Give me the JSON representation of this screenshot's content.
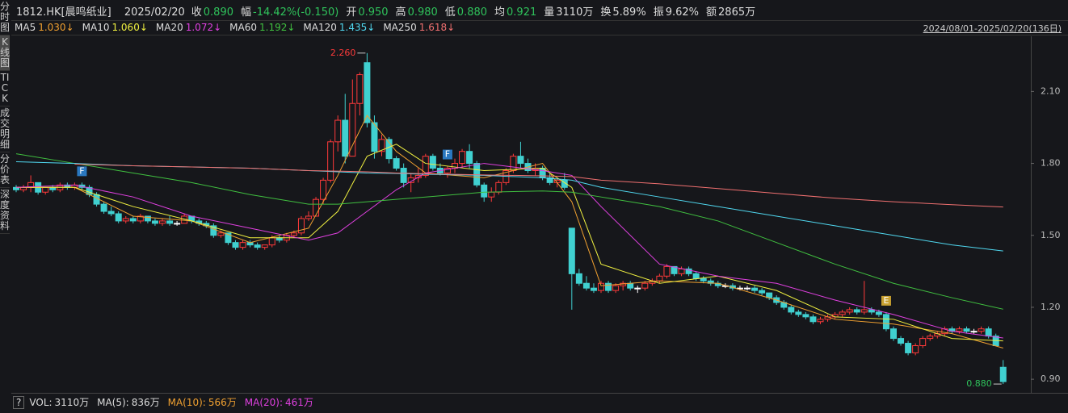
{
  "sidebar_tabs": [
    "分时图",
    "K线图",
    "TICK",
    "成交明细",
    "分价表",
    "深度资料"
  ],
  "header": {
    "symbol": "1812.HK[晨鸣纸业]",
    "date": "2025/02/20",
    "fields": [
      {
        "label": "收",
        "value": "0.890",
        "color": "#2fc25b"
      },
      {
        "label": "幅",
        "value": "-14.42%(-0.150)",
        "color": "#2fc25b"
      },
      {
        "label": "开",
        "value": "0.950",
        "color": "#2fc25b"
      },
      {
        "label": "高",
        "value": "0.980",
        "color": "#2fc25b"
      },
      {
        "label": "低",
        "value": "0.880",
        "color": "#2fc25b"
      },
      {
        "label": "均",
        "value": "0.921",
        "color": "#2fc25b"
      },
      {
        "label": "量",
        "value": "3110万",
        "color": "#dddddd"
      },
      {
        "label": "换",
        "value": "5.89%",
        "color": "#dddddd"
      },
      {
        "label": "振",
        "value": "9.62%",
        "color": "#dddddd"
      },
      {
        "label": "额",
        "value": "2865万",
        "color": "#dddddd"
      }
    ]
  },
  "volume_bar": [
    {
      "label": "VOL:",
      "value": "3110万",
      "color": "#dddddd"
    },
    {
      "label": "MA(5):",
      "value": "836万",
      "color": "#dddddd"
    },
    {
      "label": "MA(10):",
      "value": "566万",
      "color": "#f0a030"
    },
    {
      "label": "MA(20):",
      "value": "461万",
      "color": "#e040e0"
    }
  ],
  "chart_data": {
    "type": "candlestick",
    "range_label": "2024/08/01-2025/02/20(136日)",
    "ylim": [
      0.85,
      2.33
    ],
    "yticks": [
      {
        "value": 0.9,
        "label": "0.90"
      },
      {
        "value": 1.2,
        "label": "1.20"
      },
      {
        "value": 1.5,
        "label": "1.50"
      },
      {
        "value": 1.8,
        "label": "1.80"
      },
      {
        "value": 2.1,
        "label": "2.10"
      }
    ],
    "up_color": "#ff3a3a",
    "down_color": "#40d0d0",
    "candles": [
      [
        1.7,
        1.71,
        1.68,
        1.69
      ],
      [
        1.69,
        1.71,
        1.68,
        1.7
      ],
      [
        1.7,
        1.75,
        1.68,
        1.72
      ],
      [
        1.72,
        1.72,
        1.67,
        1.68
      ],
      [
        1.68,
        1.7,
        1.67,
        1.7
      ],
      [
        1.7,
        1.71,
        1.68,
        1.69
      ],
      [
        1.69,
        1.72,
        1.68,
        1.71
      ],
      [
        1.71,
        1.72,
        1.69,
        1.7
      ],
      [
        1.7,
        1.72,
        1.69,
        1.71
      ],
      [
        1.71,
        1.72,
        1.69,
        1.7
      ],
      [
        1.7,
        1.71,
        1.66,
        1.67
      ],
      [
        1.67,
        1.68,
        1.62,
        1.63
      ],
      [
        1.63,
        1.64,
        1.59,
        1.6
      ],
      [
        1.6,
        1.62,
        1.58,
        1.59
      ],
      [
        1.59,
        1.6,
        1.55,
        1.56
      ],
      [
        1.56,
        1.58,
        1.55,
        1.57
      ],
      [
        1.57,
        1.58,
        1.55,
        1.56
      ],
      [
        1.56,
        1.59,
        1.55,
        1.58
      ],
      [
        1.58,
        1.58,
        1.55,
        1.56
      ],
      [
        1.56,
        1.57,
        1.54,
        1.55
      ],
      [
        1.55,
        1.57,
        1.54,
        1.56
      ],
      [
        1.56,
        1.58,
        1.54,
        1.55
      ],
      [
        1.55,
        1.56,
        1.54,
        1.55
      ],
      [
        1.55,
        1.59,
        1.55,
        1.58
      ],
      [
        1.58,
        1.58,
        1.55,
        1.56
      ],
      [
        1.56,
        1.57,
        1.54,
        1.55
      ],
      [
        1.55,
        1.56,
        1.53,
        1.54
      ],
      [
        1.54,
        1.55,
        1.49,
        1.5
      ],
      [
        1.5,
        1.52,
        1.49,
        1.51
      ],
      [
        1.51,
        1.51,
        1.46,
        1.47
      ],
      [
        1.47,
        1.48,
        1.44,
        1.45
      ],
      [
        1.45,
        1.48,
        1.44,
        1.47
      ],
      [
        1.47,
        1.48,
        1.45,
        1.46
      ],
      [
        1.46,
        1.47,
        1.44,
        1.45
      ],
      [
        1.45,
        1.46,
        1.44,
        1.46
      ],
      [
        1.46,
        1.5,
        1.45,
        1.49
      ],
      [
        1.49,
        1.5,
        1.47,
        1.48
      ],
      [
        1.48,
        1.51,
        1.47,
        1.5
      ],
      [
        1.5,
        1.52,
        1.49,
        1.51
      ],
      [
        1.51,
        1.58,
        1.5,
        1.57
      ],
      [
        1.57,
        1.6,
        1.56,
        1.58
      ],
      [
        1.58,
        1.66,
        1.58,
        1.65
      ],
      [
        1.65,
        1.74,
        1.63,
        1.73
      ],
      [
        1.73,
        1.9,
        1.72,
        1.89
      ],
      [
        1.89,
        2.0,
        1.85,
        1.98
      ],
      [
        1.98,
        2.09,
        1.8,
        1.83
      ],
      [
        1.83,
        2.15,
        1.83,
        2.05
      ],
      [
        2.05,
        2.18,
        2.0,
        2.17
      ],
      [
        2.22,
        2.26,
        1.95,
        1.97
      ],
      [
        1.97,
        2.0,
        1.82,
        1.85
      ],
      [
        1.85,
        1.92,
        1.83,
        1.9
      ],
      [
        1.9,
        1.91,
        1.8,
        1.82
      ],
      [
        1.82,
        1.83,
        1.77,
        1.78
      ],
      [
        1.78,
        1.8,
        1.7,
        1.72
      ],
      [
        1.72,
        1.76,
        1.68,
        1.74
      ],
      [
        1.74,
        1.78,
        1.72,
        1.75
      ],
      [
        1.75,
        1.84,
        1.74,
        1.83
      ],
      [
        1.83,
        1.84,
        1.77,
        1.78
      ],
      [
        1.78,
        1.8,
        1.75,
        1.76
      ],
      [
        1.76,
        1.79,
        1.74,
        1.78
      ],
      [
        1.78,
        1.82,
        1.76,
        1.8
      ],
      [
        1.8,
        1.86,
        1.78,
        1.85
      ],
      [
        1.85,
        1.88,
        1.78,
        1.8
      ],
      [
        1.8,
        1.81,
        1.7,
        1.71
      ],
      [
        1.71,
        1.72,
        1.64,
        1.66
      ],
      [
        1.66,
        1.7,
        1.64,
        1.68
      ],
      [
        1.68,
        1.73,
        1.67,
        1.72
      ],
      [
        1.72,
        1.78,
        1.71,
        1.77
      ],
      [
        1.77,
        1.84,
        1.76,
        1.83
      ],
      [
        1.83,
        1.89,
        1.78,
        1.8
      ],
      [
        1.8,
        1.82,
        1.76,
        1.77
      ],
      [
        1.77,
        1.8,
        1.75,
        1.78
      ],
      [
        1.78,
        1.79,
        1.73,
        1.74
      ],
      [
        1.74,
        1.76,
        1.71,
        1.72
      ],
      [
        1.72,
        1.74,
        1.7,
        1.73
      ],
      [
        1.73,
        1.76,
        1.69,
        1.7
      ],
      [
        1.53,
        1.53,
        1.19,
        1.34
      ],
      [
        1.34,
        1.36,
        1.29,
        1.3
      ],
      [
        1.3,
        1.33,
        1.27,
        1.28
      ],
      [
        1.28,
        1.3,
        1.26,
        1.27
      ],
      [
        1.27,
        1.31,
        1.26,
        1.3
      ],
      [
        1.3,
        1.31,
        1.26,
        1.27
      ],
      [
        1.27,
        1.3,
        1.26,
        1.29
      ],
      [
        1.29,
        1.31,
        1.27,
        1.3
      ],
      [
        1.3,
        1.31,
        1.27,
        1.28
      ],
      [
        1.28,
        1.29,
        1.26,
        1.28
      ],
      [
        1.28,
        1.31,
        1.27,
        1.3
      ],
      [
        1.3,
        1.32,
        1.29,
        1.31
      ],
      [
        1.31,
        1.34,
        1.3,
        1.33
      ],
      [
        1.33,
        1.38,
        1.32,
        1.37
      ],
      [
        1.37,
        1.37,
        1.33,
        1.34
      ],
      [
        1.34,
        1.37,
        1.33,
        1.36
      ],
      [
        1.36,
        1.37,
        1.33,
        1.34
      ],
      [
        1.34,
        1.35,
        1.31,
        1.32
      ],
      [
        1.32,
        1.33,
        1.3,
        1.31
      ],
      [
        1.31,
        1.32,
        1.29,
        1.3
      ],
      [
        1.3,
        1.31,
        1.28,
        1.29
      ],
      [
        1.29,
        1.3,
        1.28,
        1.29
      ],
      [
        1.29,
        1.3,
        1.27,
        1.28
      ],
      [
        1.28,
        1.29,
        1.27,
        1.28
      ],
      [
        1.28,
        1.29,
        1.27,
        1.28
      ],
      [
        1.28,
        1.29,
        1.26,
        1.27
      ],
      [
        1.27,
        1.28,
        1.25,
        1.26
      ],
      [
        1.26,
        1.26,
        1.23,
        1.24
      ],
      [
        1.24,
        1.25,
        1.21,
        1.22
      ],
      [
        1.22,
        1.23,
        1.19,
        1.2
      ],
      [
        1.2,
        1.21,
        1.17,
        1.18
      ],
      [
        1.18,
        1.19,
        1.16,
        1.17
      ],
      [
        1.17,
        1.18,
        1.15,
        1.16
      ],
      [
        1.16,
        1.17,
        1.13,
        1.14
      ],
      [
        1.14,
        1.16,
        1.13,
        1.15
      ],
      [
        1.15,
        1.17,
        1.14,
        1.16
      ],
      [
        1.16,
        1.18,
        1.15,
        1.17
      ],
      [
        1.17,
        1.19,
        1.16,
        1.18
      ],
      [
        1.18,
        1.2,
        1.17,
        1.19
      ],
      [
        1.19,
        1.2,
        1.17,
        1.18
      ],
      [
        1.18,
        1.31,
        1.17,
        1.19
      ],
      [
        1.19,
        1.2,
        1.17,
        1.18
      ],
      [
        1.18,
        1.19,
        1.16,
        1.17
      ],
      [
        1.17,
        1.18,
        1.1,
        1.11
      ],
      [
        1.11,
        1.12,
        1.06,
        1.07
      ],
      [
        1.07,
        1.08,
        1.04,
        1.05
      ],
      [
        1.05,
        1.06,
        1.0,
        1.01
      ],
      [
        1.01,
        1.05,
        1.0,
        1.04
      ],
      [
        1.04,
        1.08,
        1.03,
        1.07
      ],
      [
        1.07,
        1.09,
        1.06,
        1.08
      ],
      [
        1.08,
        1.1,
        1.07,
        1.09
      ],
      [
        1.09,
        1.12,
        1.08,
        1.11
      ],
      [
        1.11,
        1.12,
        1.09,
        1.1
      ],
      [
        1.1,
        1.12,
        1.09,
        1.11
      ],
      [
        1.11,
        1.12,
        1.09,
        1.1
      ],
      [
        1.1,
        1.11,
        1.09,
        1.1
      ],
      [
        1.1,
        1.12,
        1.09,
        1.11
      ],
      [
        1.11,
        1.12,
        1.07,
        1.08
      ],
      [
        1.08,
        1.09,
        1.04,
        1.04
      ],
      [
        0.95,
        0.98,
        0.88,
        0.89
      ]
    ],
    "ma_x": [
      0,
      8,
      16,
      24,
      32,
      40,
      44,
      48,
      52,
      56,
      64,
      72,
      76,
      80,
      88,
      96,
      104,
      112,
      120,
      128,
      135
    ],
    "series": [
      {
        "name": "MA5",
        "label": "1.030↓",
        "color": "#f0a030",
        "values": [
          1.7,
          1.7,
          1.58,
          1.56,
          1.47,
          1.53,
          1.75,
          2.0,
          1.85,
          1.76,
          1.74,
          1.8,
          1.64,
          1.29,
          1.31,
          1.3,
          1.23,
          1.15,
          1.13,
          1.09,
          1.03
        ]
      },
      {
        "name": "MA10",
        "label": "1.060↓",
        "color": "#f0f040",
        "values": [
          1.7,
          1.7,
          1.62,
          1.56,
          1.49,
          1.49,
          1.6,
          1.83,
          1.88,
          1.8,
          1.77,
          1.78,
          1.7,
          1.38,
          1.3,
          1.33,
          1.27,
          1.16,
          1.15,
          1.07,
          1.06
        ]
      },
      {
        "name": "MA20",
        "label": "1.072↓",
        "color": "#e040e0",
        "values": [
          1.7,
          1.71,
          1.66,
          1.58,
          1.53,
          1.48,
          1.51,
          1.6,
          1.69,
          1.76,
          1.8,
          1.77,
          1.75,
          1.62,
          1.38,
          1.33,
          1.3,
          1.23,
          1.17,
          1.1,
          1.072
        ]
      },
      {
        "name": "MA60",
        "label": "1.192↓",
        "color": "#40c040",
        "values": [
          1.84,
          1.8,
          1.76,
          1.72,
          1.67,
          1.63,
          1.63,
          1.64,
          1.65,
          1.66,
          1.68,
          1.685,
          1.68,
          1.66,
          1.62,
          1.56,
          1.47,
          1.38,
          1.3,
          1.24,
          1.192
        ]
      },
      {
        "name": "MA120",
        "label": "1.435↓",
        "color": "#50d8f0",
        "values": [
          1.807,
          1.8,
          1.79,
          1.785,
          1.78,
          1.77,
          1.765,
          1.76,
          1.758,
          1.755,
          1.75,
          1.74,
          1.73,
          1.7,
          1.66,
          1.62,
          1.58,
          1.54,
          1.5,
          1.46,
          1.435
        ]
      },
      {
        "name": "MA250",
        "label": "1.618↓",
        "color": "#f07070",
        "values": [
          null,
          1.797,
          1.79,
          1.785,
          1.78,
          1.77,
          1.768,
          1.765,
          1.76,
          1.757,
          1.752,
          1.748,
          1.745,
          1.73,
          1.715,
          1.695,
          1.675,
          1.655,
          1.64,
          1.628,
          1.618
        ]
      }
    ],
    "annotations": [
      {
        "label": "2.260",
        "value": 2.26,
        "candle": 48,
        "color": "#ff3a3a"
      },
      {
        "label": "0.880",
        "value": 0.88,
        "candle": 135,
        "color": "#2fc25b"
      }
    ],
    "markers": [
      {
        "label": "F",
        "candle": 9,
        "color": "#2a78c0"
      },
      {
        "label": "F",
        "candle": 59,
        "color": "#2a78c0"
      },
      {
        "label": "E",
        "candle": 119,
        "color": "#c8a030"
      }
    ]
  }
}
